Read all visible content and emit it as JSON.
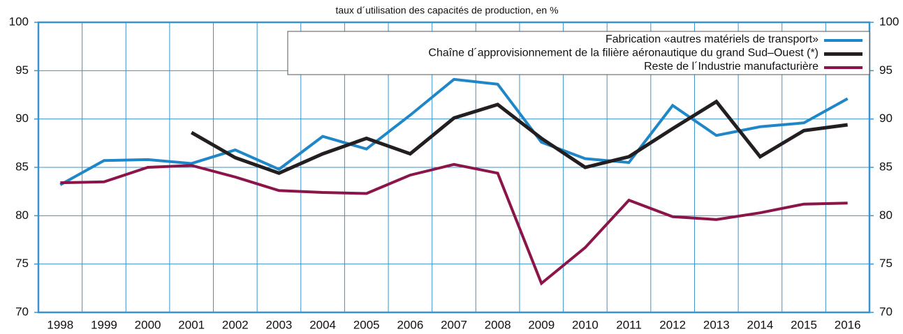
{
  "chart_data": {
    "type": "line",
    "subtitle": "taux d´utilisation des capacités de production, en %",
    "categories": [
      "1998",
      "1999",
      "2000",
      "2001",
      "2002",
      "2003",
      "2004",
      "2005",
      "2006",
      "2007",
      "2008",
      "2009",
      "2010",
      "2011",
      "2012",
      "2013",
      "2014",
      "2015",
      "2016"
    ],
    "series": [
      {
        "name": "Fabrication «autres matériels de transport»",
        "color": "#1f87c8",
        "values": [
          83.2,
          85.7,
          85.8,
          85.4,
          86.8,
          84.8,
          88.2,
          86.9,
          90.4,
          94.1,
          93.6,
          87.6,
          85.9,
          85.5,
          91.4,
          88.3,
          89.2,
          89.6,
          92.1
        ]
      },
      {
        "name": "Chaîne d´approvisionnement de la filière aéronautique du grand Sud–Ouest (*)",
        "color": "#231f20",
        "values": [
          null,
          null,
          null,
          88.6,
          86.0,
          84.4,
          86.4,
          88.0,
          86.4,
          90.1,
          91.5,
          88.0,
          85.0,
          86.1,
          89.0,
          91.8,
          86.1,
          88.8,
          89.4
        ]
      },
      {
        "name": "Reste de l´Industrie manufacturière",
        "color": "#8b1449",
        "values": [
          83.4,
          83.5,
          85.0,
          85.2,
          84.0,
          82.6,
          82.4,
          82.3,
          84.2,
          85.3,
          84.4,
          73.0,
          76.7,
          81.6,
          79.9,
          79.6,
          80.3,
          81.2,
          81.3
        ]
      }
    ],
    "ylim": [
      70,
      100
    ],
    "yticks": [
      70,
      75,
      80,
      85,
      90,
      95,
      100
    ],
    "y2lim": [
      70,
      100
    ],
    "y2ticks": [
      70,
      75,
      80,
      85,
      90,
      95,
      100
    ],
    "grid": true,
    "legend": "top-right"
  }
}
